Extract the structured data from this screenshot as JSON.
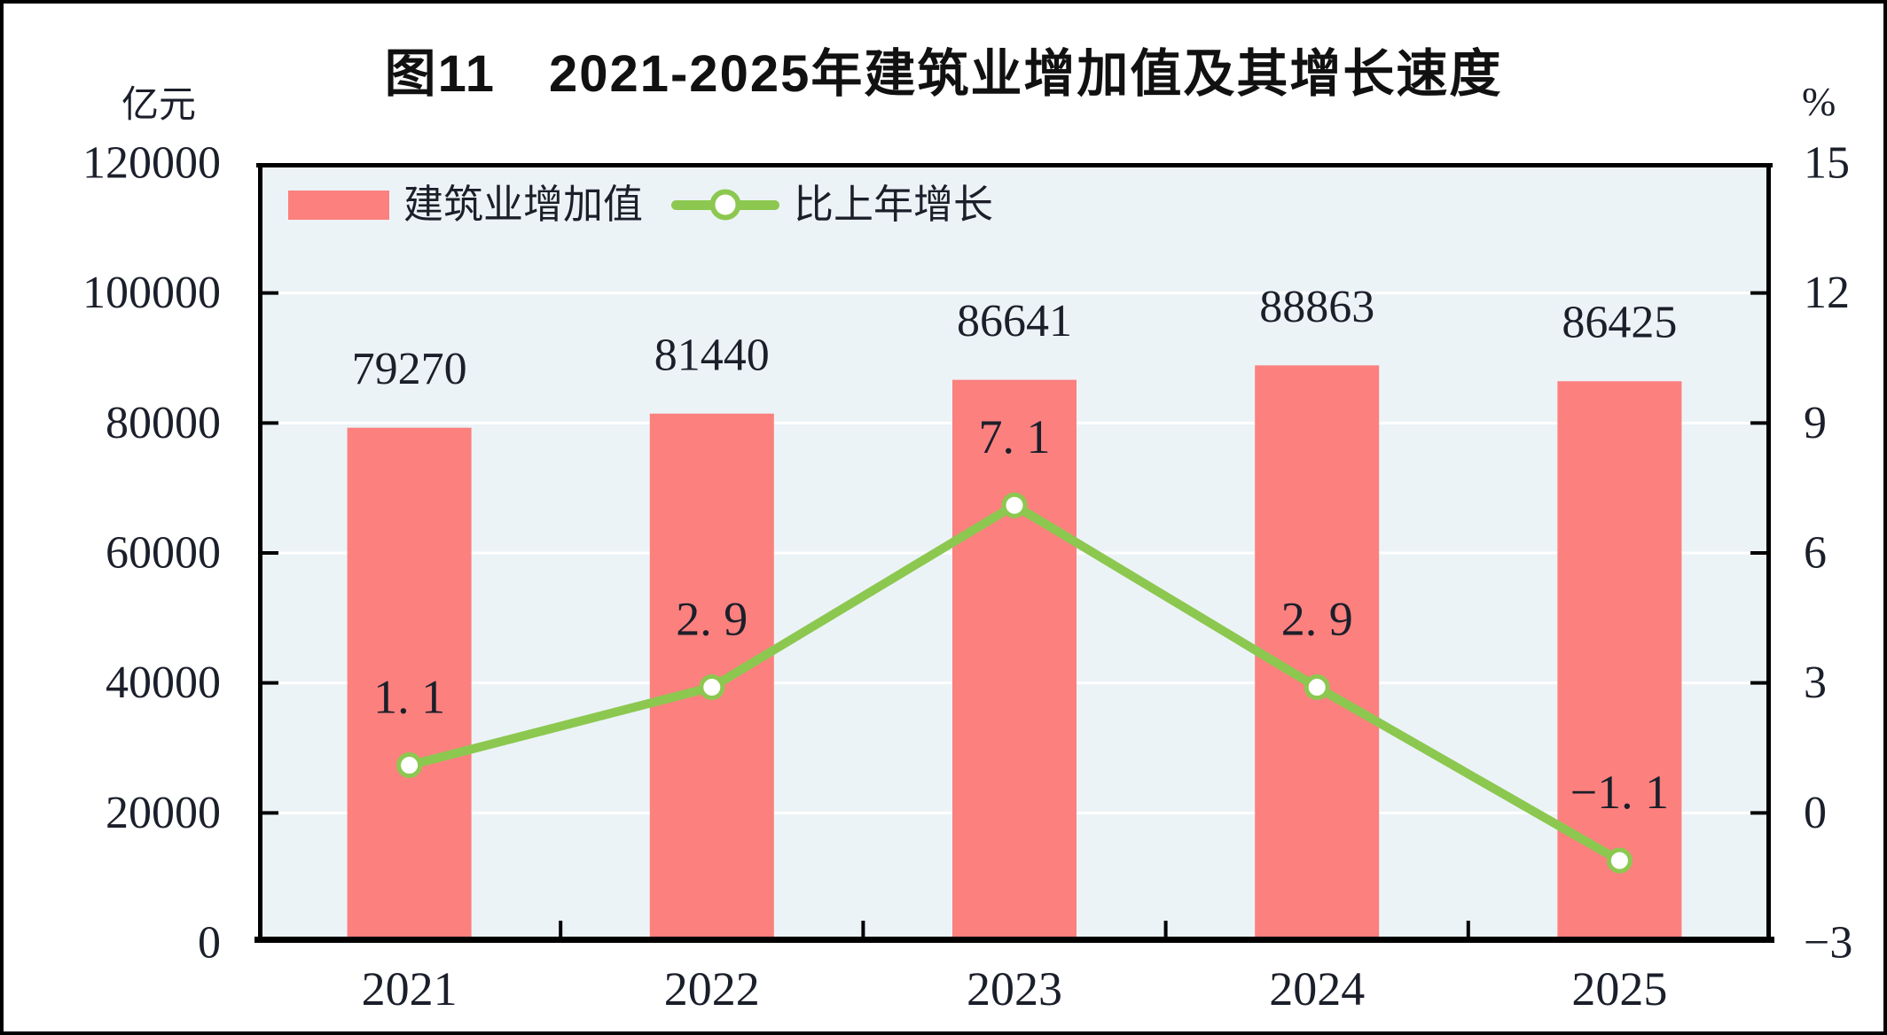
{
  "title": "图11　2021-2025年建筑业增加值及其增长速度",
  "axes": {
    "left_unit": "亿元",
    "right_unit": "%"
  },
  "legend": {
    "items": [
      {
        "label": "建筑业增加值",
        "marker": "bar-swatch",
        "color": "#fb807e"
      },
      {
        "label": "比上年增长",
        "marker": "line-marker",
        "color": "#8cc850"
      }
    ]
  },
  "chart_data": {
    "type": "combo-bar-line",
    "title": "图11　2021-2025年建筑业增加值及其增长速度",
    "categories": [
      "2021",
      "2022",
      "2023",
      "2024",
      "2025"
    ],
    "series": [
      {
        "name": "建筑业增加值",
        "type": "bar",
        "axis": "left",
        "unit": "亿元",
        "color": "#fb807e",
        "values": [
          79270,
          81440,
          86641,
          88863,
          86425
        ],
        "data_labels": [
          "79270",
          "81440",
          "86641",
          "88863",
          "86425"
        ]
      },
      {
        "name": "比上年增长",
        "type": "line",
        "axis": "right",
        "unit": "%",
        "color": "#8cc850",
        "marker": "circle-white-fill",
        "values": [
          1.1,
          2.9,
          7.1,
          2.9,
          -1.1
        ],
        "data_labels": [
          "1. 1",
          "2. 9",
          "7. 1",
          "2. 9",
          "−1. 1"
        ]
      }
    ],
    "left_axis": {
      "unit": "亿元",
      "min": 0,
      "max": 120000,
      "step": 20000,
      "tick_labels": [
        "0",
        "20000",
        "40000",
        "60000",
        "80000",
        "100000",
        "120000"
      ]
    },
    "right_axis": {
      "unit": "%",
      "min": -3,
      "max": 15,
      "step": 3,
      "tick_labels": [
        "−3",
        "0",
        "3",
        "6",
        "9",
        "12",
        "15"
      ]
    },
    "grid": true,
    "gridline_color": "#ffffff",
    "plot_background": "#ecf3f7",
    "axis_color": "#000000",
    "text_color": "#1b1f2a",
    "legend_position": "top-left-inside"
  }
}
